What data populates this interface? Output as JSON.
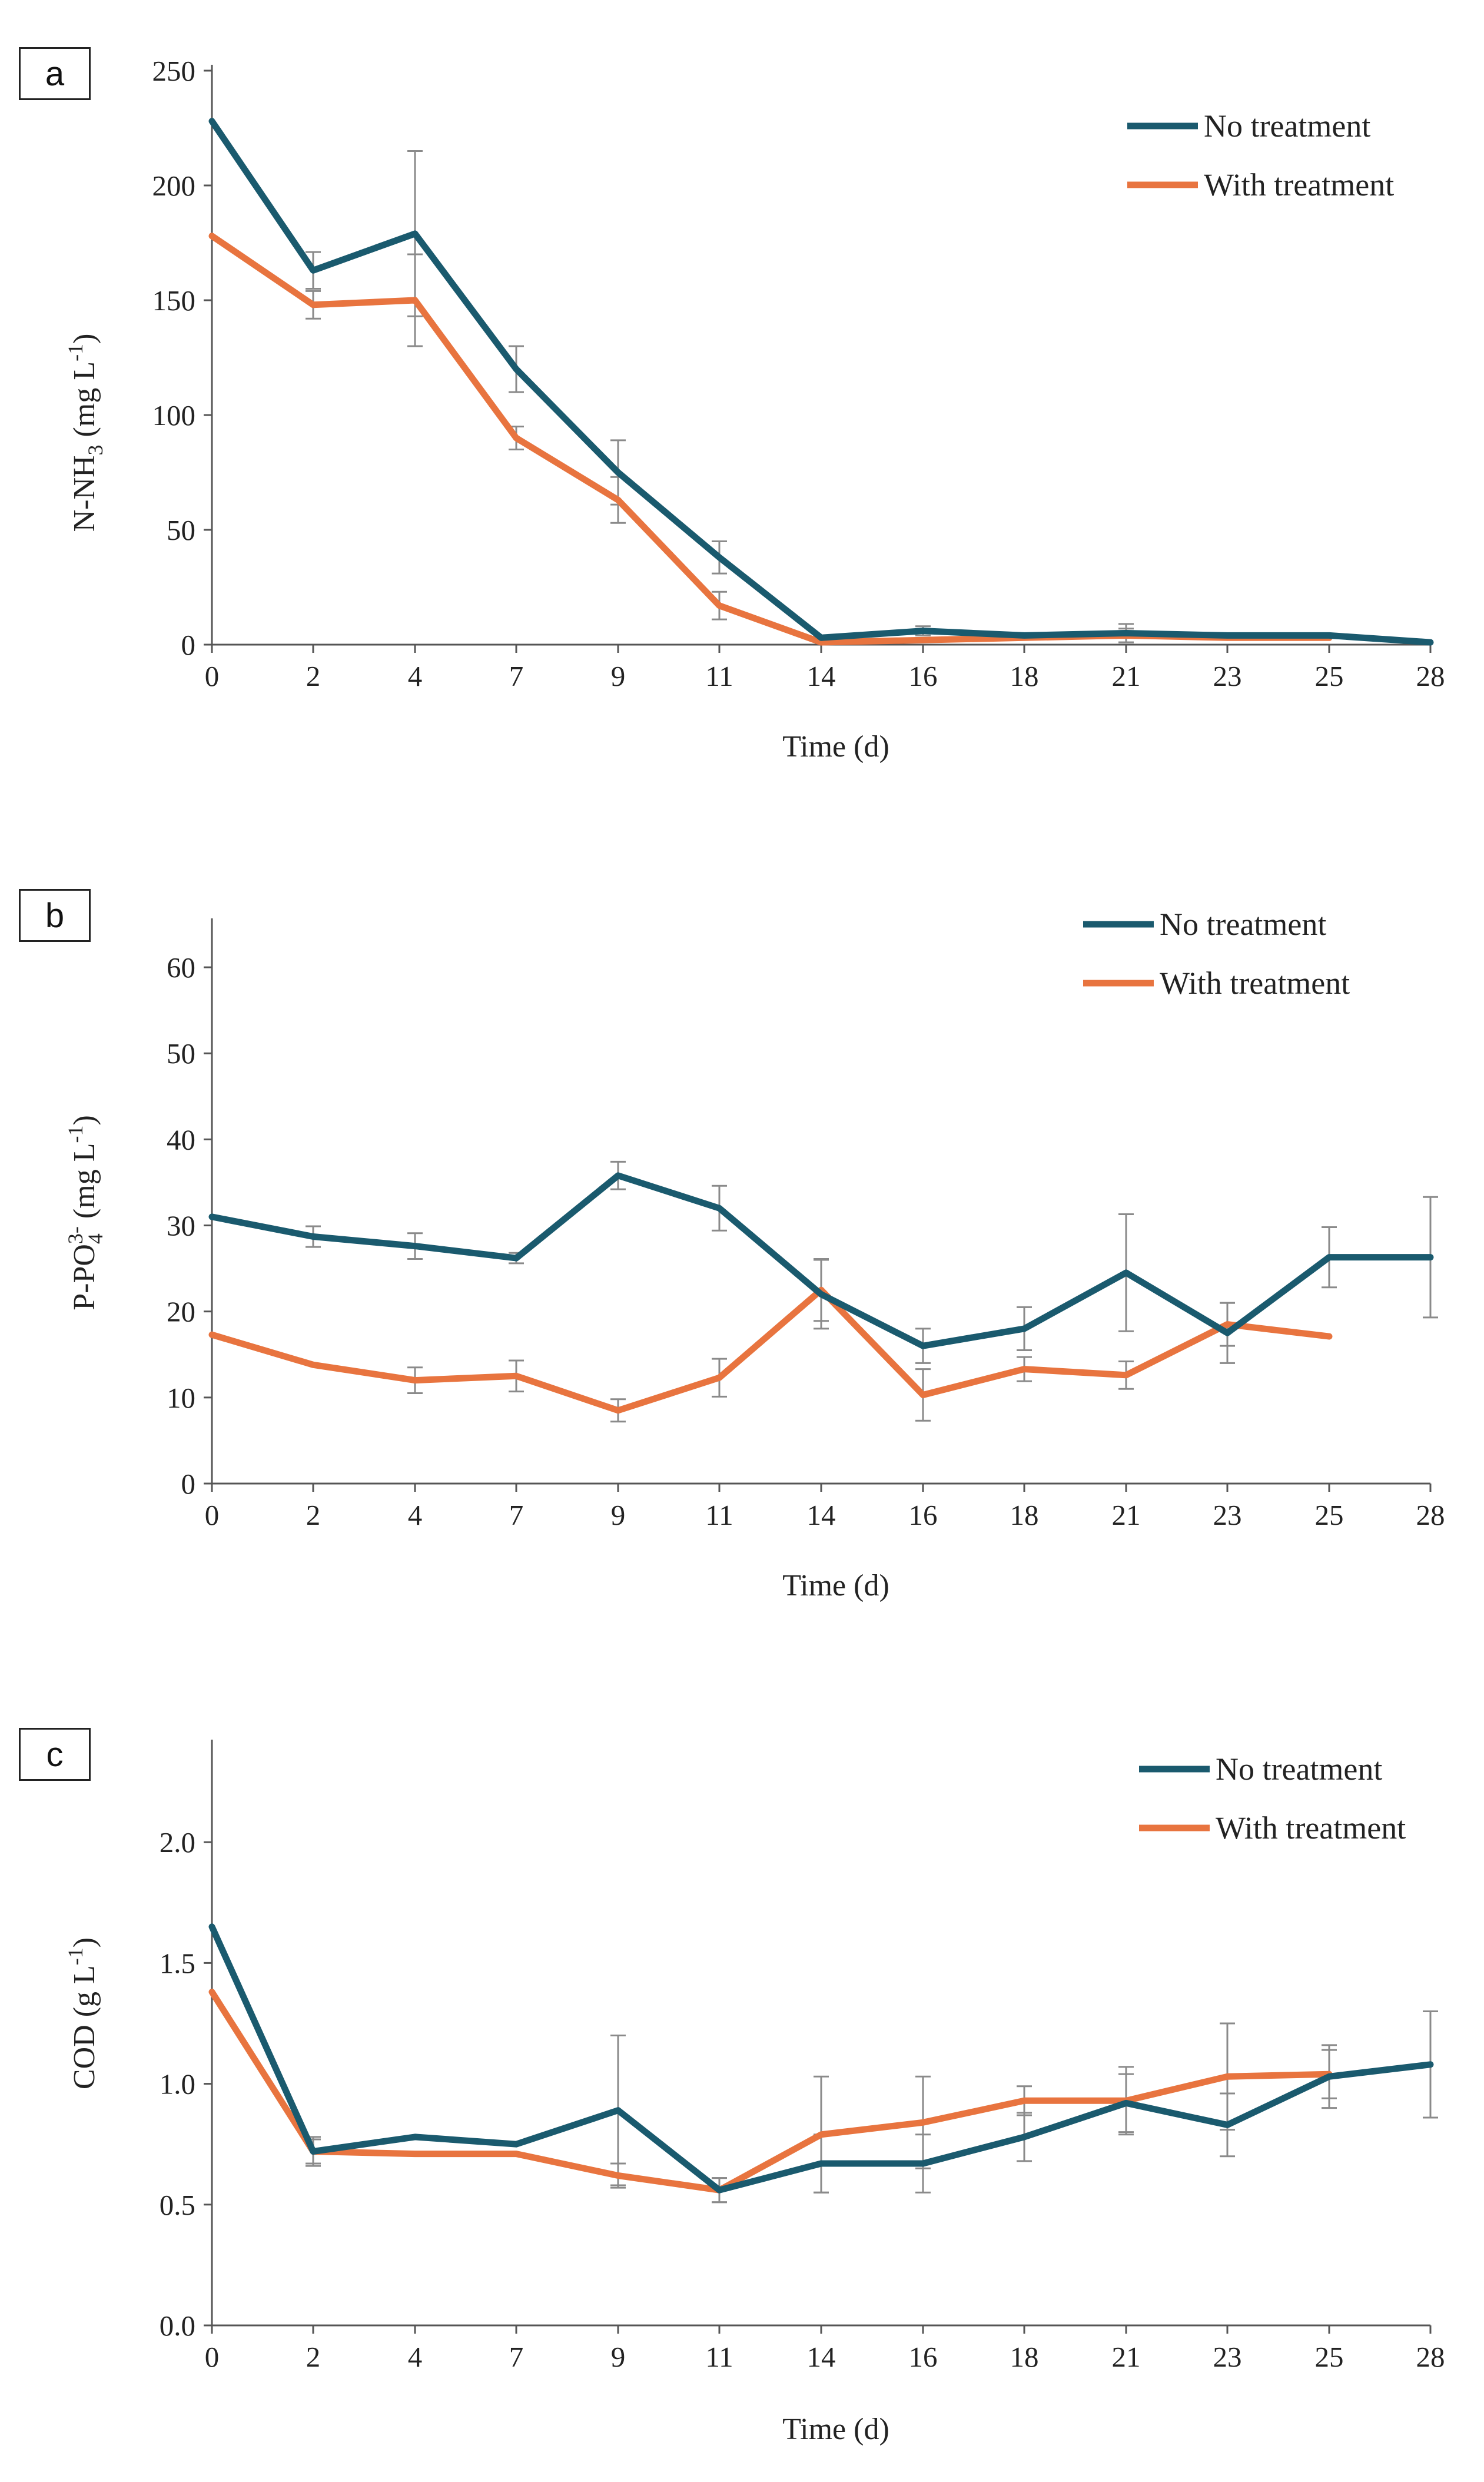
{
  "chart_data": [
    {
      "type": "line",
      "panel_label": "a",
      "title": "",
      "xlabel": "Time  (d)",
      "ylabel_parts": [
        "N-NH",
        "3",
        " (mg L",
        "-1",
        ")"
      ],
      "x_categories": [
        "0",
        "2",
        "4",
        "7",
        "9",
        "11",
        "14",
        "16",
        "18",
        "21",
        "23",
        "25",
        "28"
      ],
      "y_ticks": [
        "0",
        "50",
        "100",
        "150",
        "200",
        "250"
      ],
      "ylim": [
        0,
        250
      ],
      "legend_position": "top-right",
      "series": [
        {
          "name": "No treatment",
          "color": "#1a5a6e",
          "values": [
            228,
            163,
            179,
            120,
            75,
            38,
            3,
            6,
            4,
            5,
            4,
            4,
            1
          ],
          "errors": [
            0,
            8,
            36,
            10,
            14,
            7,
            0,
            2,
            0,
            4,
            0,
            0,
            0
          ]
        },
        {
          "name": "With treatment",
          "color": "#e8743f",
          "values": [
            178,
            148,
            150,
            90,
            63,
            17,
            1,
            2,
            3,
            4,
            3,
            3,
            null
          ],
          "errors": [
            0,
            6,
            20,
            5,
            10,
            6,
            0,
            0,
            0,
            3,
            0,
            0,
            null
          ]
        }
      ]
    },
    {
      "type": "line",
      "panel_label": "b",
      "title": "",
      "xlabel": "Time  (d)",
      "ylabel_parts": [
        "P-PO",
        "4",
        "3-",
        " (mg L",
        "-1",
        ")"
      ],
      "x_categories": [
        "0",
        "2",
        "4",
        "7",
        "9",
        "11",
        "14",
        "16",
        "18",
        "21",
        "23",
        "25",
        "28"
      ],
      "y_ticks": [
        "0",
        "10",
        "20",
        "30",
        "40",
        "50",
        "60"
      ],
      "ylim": [
        0,
        65
      ],
      "legend_position": "top-right",
      "series": [
        {
          "name": "No treatment",
          "color": "#1a5a6e",
          "values": [
            31,
            28.7,
            27.6,
            26.2,
            35.8,
            32,
            22,
            16,
            18,
            24.5,
            17.5,
            26.3,
            26.3
          ],
          "errors": [
            0,
            1.2,
            1.5,
            0.6,
            1.6,
            2.6,
            4,
            2,
            2.5,
            6.8,
            3.5,
            3.5,
            7
          ]
        },
        {
          "name": "With treatment",
          "color": "#e8743f",
          "values": [
            17.3,
            13.8,
            12,
            12.5,
            8.5,
            12.3,
            22.5,
            10.3,
            13.3,
            12.6,
            18.5,
            17.1,
            null
          ],
          "errors": [
            0,
            0,
            1.5,
            1.8,
            1.3,
            2.2,
            3.6,
            3,
            1.4,
            1.6,
            2.5,
            0,
            null
          ]
        }
      ]
    },
    {
      "type": "line",
      "panel_label": "c",
      "title": "",
      "xlabel": "Time  (d)",
      "ylabel_parts": [
        "COD (g L",
        "-1",
        ")"
      ],
      "x_categories": [
        "0",
        "2",
        "4",
        "7",
        "9",
        "11",
        "14",
        "16",
        "18",
        "21",
        "23",
        "25",
        "28"
      ],
      "y_ticks": [
        "0.0",
        "0.5",
        "1.0",
        "1.5",
        "2.0"
      ],
      "ylim": [
        0,
        2.4
      ],
      "legend_position": "top-right",
      "series": [
        {
          "name": "No treatment",
          "color": "#1a5a6e",
          "values": [
            1.65,
            0.72,
            0.78,
            0.75,
            0.89,
            0.56,
            0.67,
            0.67,
            0.78,
            0.92,
            0.83,
            1.03,
            1.08
          ],
          "errors": [
            0,
            0.06,
            0,
            0,
            0.31,
            0.05,
            0.12,
            0.12,
            0.1,
            0.12,
            0.13,
            0.13,
            0.22
          ]
        },
        {
          "name": "With treatment",
          "color": "#e8743f",
          "values": [
            1.38,
            0.72,
            0.71,
            0.71,
            0.62,
            0.56,
            0.79,
            0.84,
            0.93,
            0.93,
            1.03,
            1.04,
            null
          ],
          "errors": [
            0,
            0.05,
            0,
            0,
            0.05,
            0.05,
            0.24,
            0.19,
            0.06,
            0.14,
            0.22,
            0.1,
            null
          ]
        }
      ]
    }
  ]
}
